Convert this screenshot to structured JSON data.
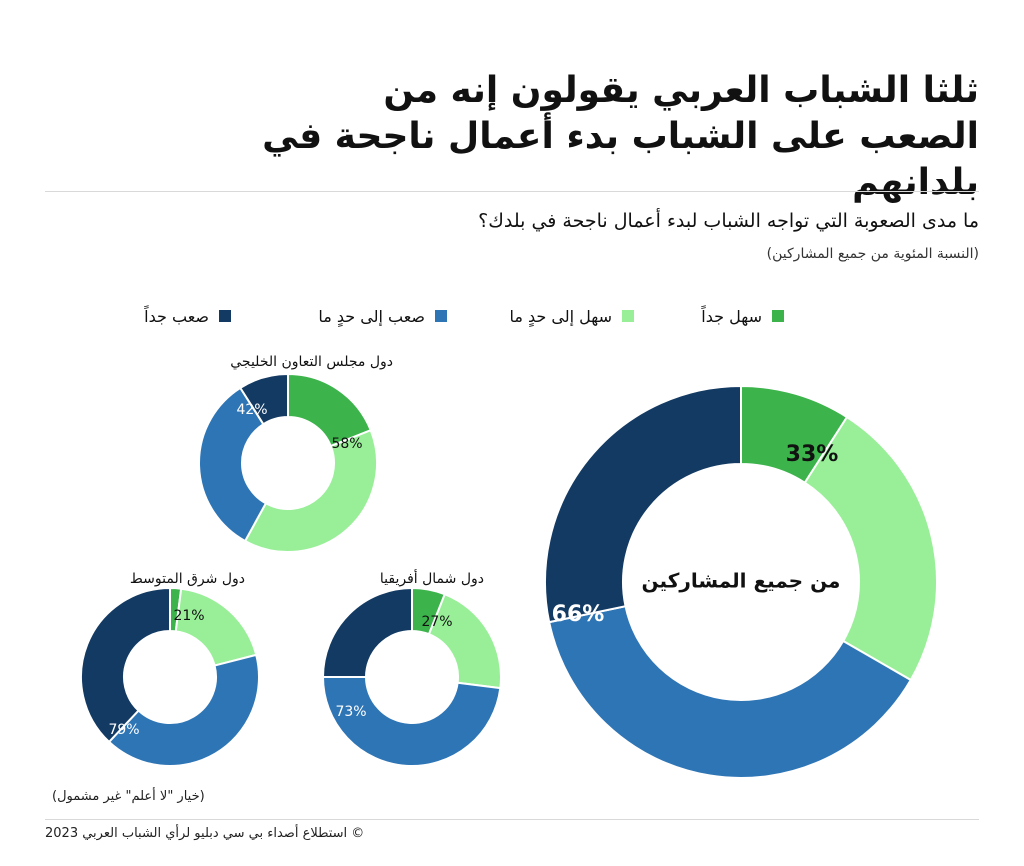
{
  "header": {
    "title": "ثلثا الشباب العربي يقولون إنه من الصعب على الشباب بدء أعمال ناجحة في بلدانهم",
    "question": "ما مدى الصعوبة التي تواجه الشباب لبدء أعمال ناجحة في بلدك؟",
    "subnote": "(النسبة المئوية من جميع المشاركين)"
  },
  "legend": [
    {
      "label": "سهل جداً",
      "color": "#3cb44b"
    },
    {
      "label": "سهل إلى حدٍ ما",
      "color": "#98ef98"
    },
    {
      "label": "صعب إلى حدٍ ما",
      "color": "#2e75b6"
    },
    {
      "label": "صعب جداً",
      "color": "#133a63"
    }
  ],
  "chart_data": [
    {
      "type": "pie",
      "title": "من جميع المشاركين",
      "categories": [
        "سهل جداً",
        "سهل إلى حدٍ ما",
        "صعب إلى حدٍ ما",
        "صعب جداً"
      ],
      "values": [
        9,
        24,
        38,
        28
      ],
      "annotations": {
        "easy_total": "33%",
        "difficult_total": "66%"
      }
    },
    {
      "type": "pie",
      "title": "دول مجلس التعاون الخليجي",
      "categories": [
        "سهل جداً",
        "سهل إلى حدٍ ما",
        "صعب إلى حدٍ ما",
        "صعب جداً"
      ],
      "values": [
        19,
        39,
        33,
        9
      ],
      "annotations": {
        "easy_total": "58%",
        "difficult_total": "42%"
      }
    },
    {
      "type": "pie",
      "title": "دول شمال أفريقيا",
      "categories": [
        "سهل جداً",
        "سهل إلى حدٍ ما",
        "صعب إلى حدٍ ما",
        "صعب جداً"
      ],
      "values": [
        6,
        21,
        48,
        25
      ],
      "annotations": {
        "easy_total": "27%",
        "difficult_total": "73%"
      }
    },
    {
      "type": "pie",
      "title": "دول شرق المتوسط",
      "categories": [
        "سهل جداً",
        "سهل إلى حدٍ ما",
        "صعب إلى حدٍ ما",
        "صعب جداً"
      ],
      "values": [
        2,
        19,
        41,
        38
      ],
      "annotations": {
        "easy_total": "21%",
        "difficult_total": "79%"
      }
    }
  ],
  "footer": {
    "note": "(خيار \"لا أعلم\" غير مشمول)",
    "source": "© استطلاع أصداء بي سي دبليو لرأي الشباب العربي 2023"
  }
}
